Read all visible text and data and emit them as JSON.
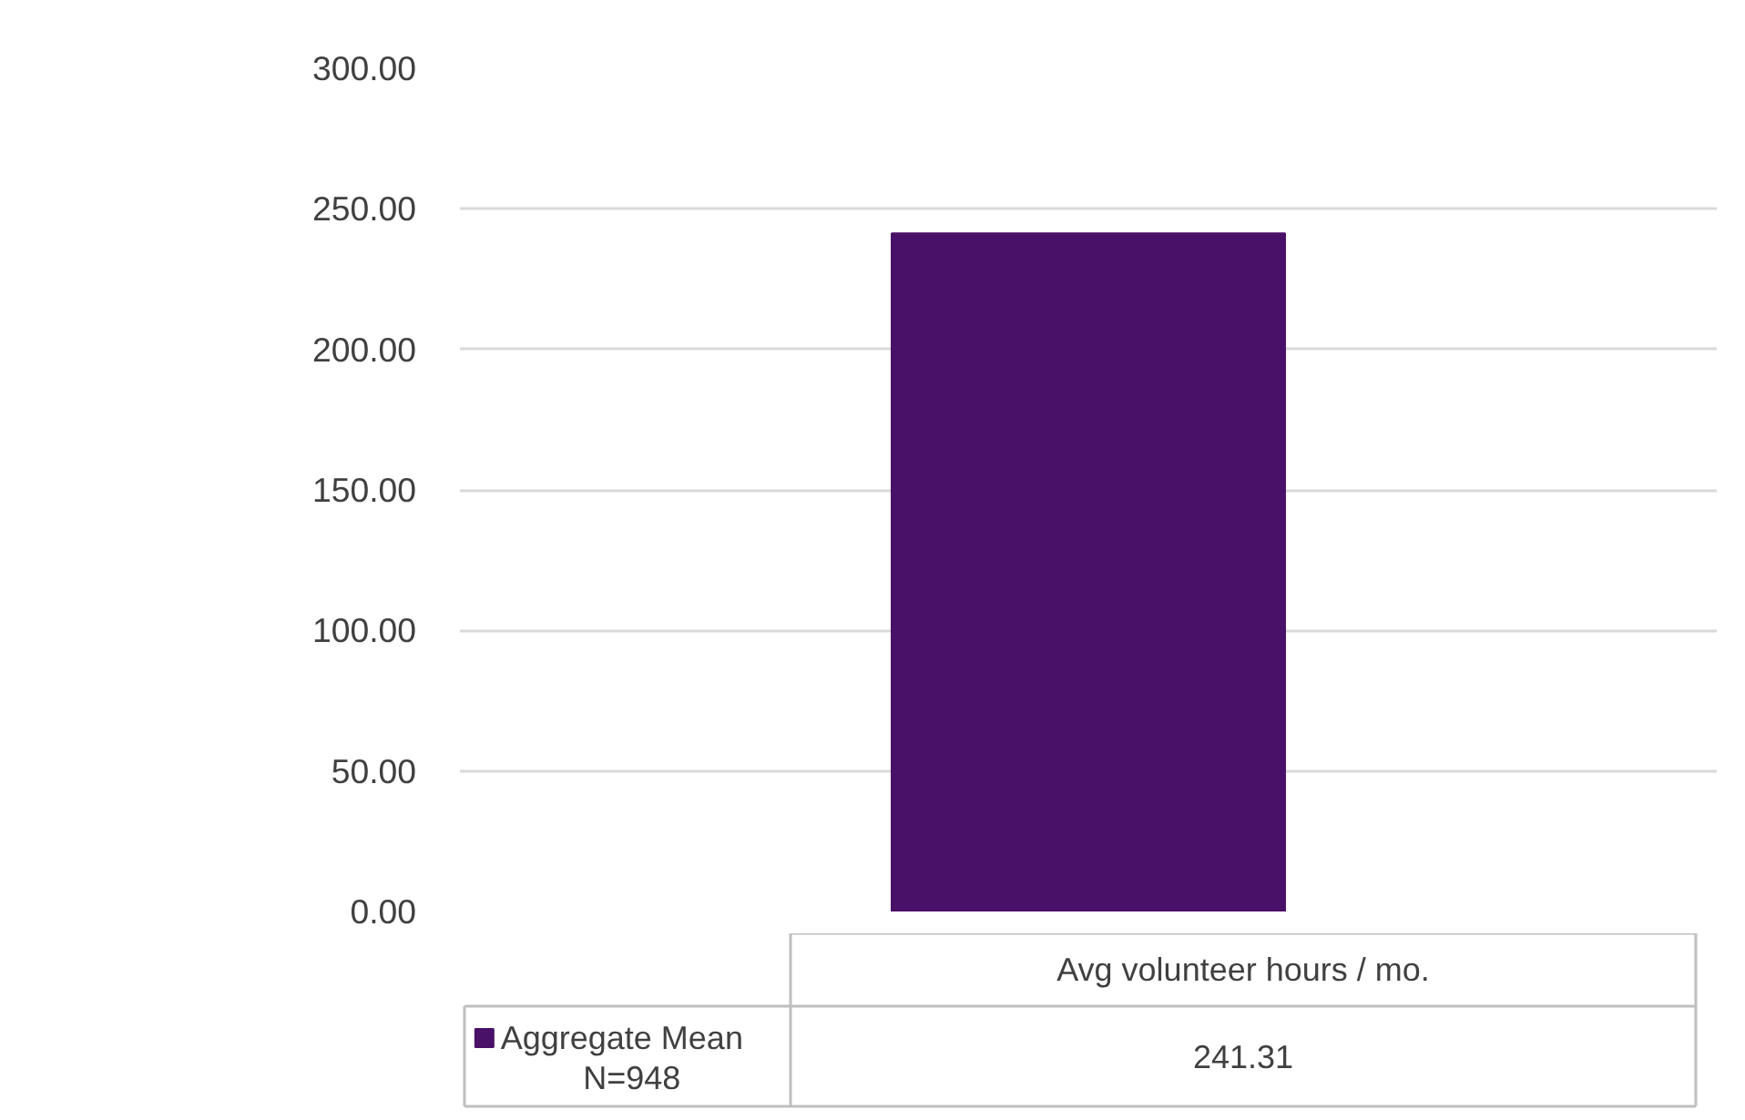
{
  "chart_data": {
    "type": "bar",
    "categories": [
      "Avg volunteer hours / mo."
    ],
    "series": [
      {
        "name": "Aggregate Mean\nN=948",
        "color": "#4a1169",
        "values": [
          241.31
        ]
      }
    ],
    "ylim": [
      0,
      300
    ],
    "yticks": [
      {
        "value": 0,
        "label": "0.00"
      },
      {
        "value": 50,
        "label": "50.00"
      },
      {
        "value": 100,
        "label": "100.00"
      },
      {
        "value": 150,
        "label": "150.00"
      },
      {
        "value": 200,
        "label": "200.00"
      },
      {
        "value": 250,
        "label": "250.00"
      },
      {
        "value": 300,
        "label": "300.00"
      }
    ],
    "value_labels": [
      "241.31"
    ],
    "grid": "y",
    "legend": "bottom left"
  }
}
